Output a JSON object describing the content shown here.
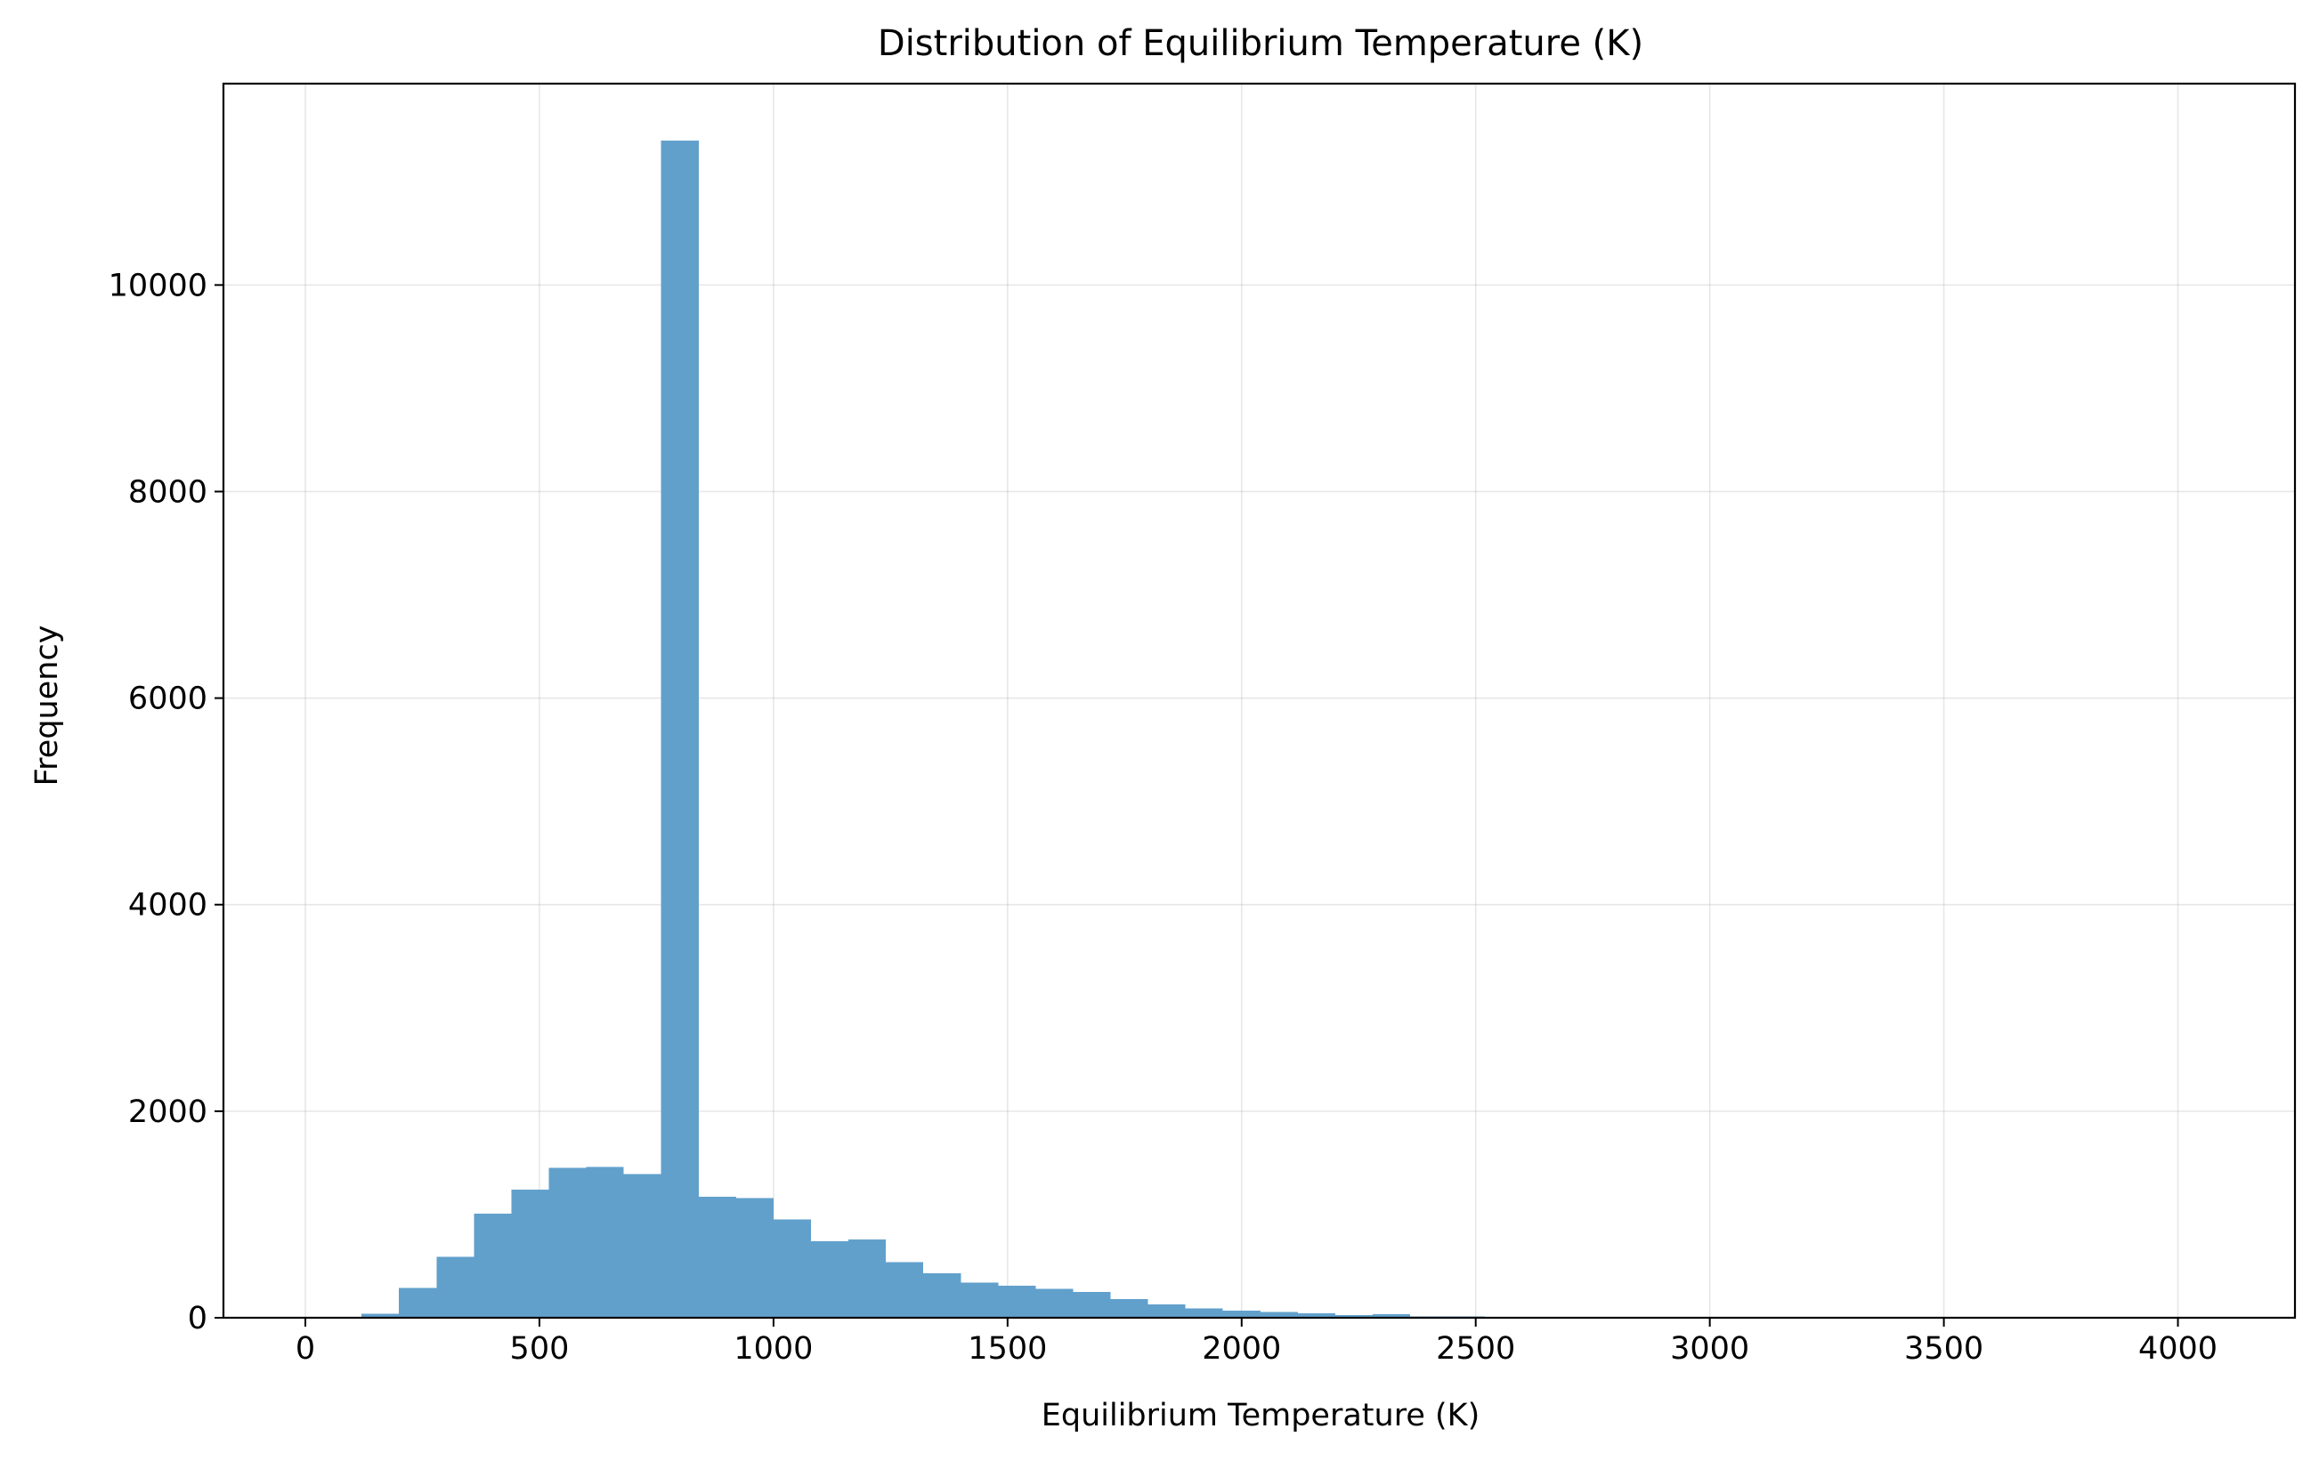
{
  "chart_data": {
    "type": "bar",
    "title": "Distribution of Equilibrium Temperature (K)",
    "xlabel": "Equilibrium Temperature (K)",
    "ylabel": "Frequency",
    "xlim": [
      -175,
      4250
    ],
    "ylim": [
      0,
      11950
    ],
    "xticks": [
      "0",
      "500",
      "1000",
      "1500",
      "2000",
      "2500",
      "3000",
      "3500",
      "4000"
    ],
    "yticks": [
      "0",
      "2000",
      "4000",
      "6000",
      "8000",
      "10000"
    ],
    "grid": true,
    "bar_color": "#62a0cc",
    "bin_edges": [
      120,
      200,
      280,
      360,
      440,
      520,
      600,
      680,
      760,
      840,
      920,
      1000,
      1080,
      1160,
      1240,
      1320,
      1400,
      1480,
      1560,
      1640,
      1720,
      1800,
      1880,
      1960,
      2040,
      2120,
      2200,
      2280,
      2360,
      2440,
      2520,
      2600,
      2680,
      2760,
      2840,
      2920,
      3000,
      3080,
      3160,
      3240,
      3320,
      3400,
      3480,
      3560,
      3640,
      3720,
      3800,
      3880,
      3960,
      4040
    ],
    "counts": [
      40,
      290,
      590,
      1010,
      1240,
      1450,
      1460,
      1390,
      11400,
      1170,
      1160,
      950,
      740,
      760,
      540,
      430,
      340,
      310,
      280,
      250,
      180,
      130,
      90,
      70,
      55,
      45,
      25,
      35,
      15,
      12,
      8,
      6,
      5,
      4,
      3,
      3,
      2,
      2,
      2,
      1,
      1,
      1,
      1,
      1,
      1,
      1,
      1,
      1,
      1
    ]
  }
}
